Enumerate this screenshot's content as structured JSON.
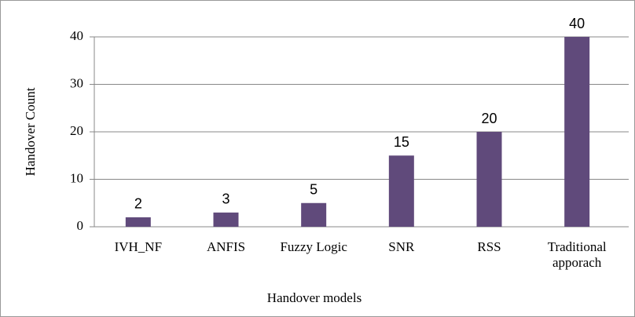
{
  "chart_data": {
    "type": "bar",
    "categories": [
      "IVH_NF",
      "ANFIS",
      "Fuzzy Logic",
      "SNR",
      "RSS",
      "Traditional apporach"
    ],
    "values": [
      2,
      3,
      5,
      15,
      20,
      40
    ],
    "color": "#604a7b",
    "x_label": "Handover models",
    "y_label": "Handover  Count",
    "ylim": [
      0,
      40
    ],
    "yticks": [
      0,
      10,
      20,
      30,
      40
    ],
    "grid": true
  }
}
